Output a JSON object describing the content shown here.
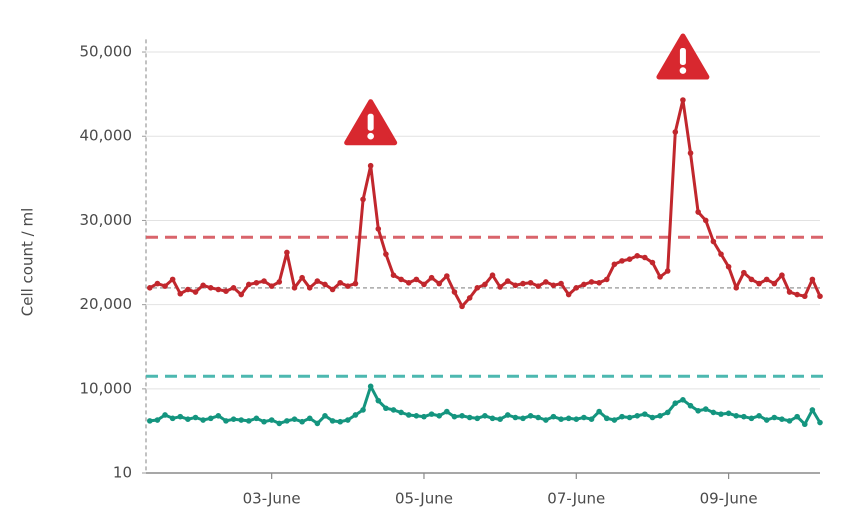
{
  "chart_data": {
    "type": "line",
    "y_label": "Cell count / ml",
    "x": [
      1.4,
      1.5,
      1.6,
      1.7,
      1.8,
      1.9,
      2.0,
      2.1,
      2.2,
      2.3,
      2.4,
      2.5,
      2.6,
      2.7,
      2.8,
      2.9,
      3.0,
      3.1,
      3.2,
      3.3,
      3.4,
      3.5,
      3.6,
      3.7,
      3.8,
      3.9,
      4.0,
      4.1,
      4.2,
      4.3,
      4.4,
      4.5,
      4.6,
      4.7,
      4.8,
      4.9,
      5.0,
      5.1,
      5.2,
      5.3,
      5.4,
      5.5,
      5.6,
      5.7,
      5.8,
      5.9,
      6.0,
      6.1,
      6.2,
      6.3,
      6.4,
      6.5,
      6.6,
      6.7,
      6.8,
      6.9,
      7.0,
      7.1,
      7.2,
      7.3,
      7.4,
      7.5,
      7.6,
      7.7,
      7.8,
      7.9,
      8.0,
      8.1,
      8.2,
      8.3,
      8.4,
      8.5,
      8.6,
      8.7,
      8.8,
      8.9,
      9.0,
      9.1,
      9.2,
      9.3,
      9.4,
      9.5,
      9.6,
      9.7,
      9.8,
      9.9,
      10.0,
      10.1,
      10.2
    ],
    "series": [
      {
        "color": "#c1272d",
        "values": [
          22000,
          22500,
          22200,
          23000,
          21300,
          21800,
          21500,
          22300,
          22000,
          21800,
          21600,
          22000,
          21200,
          22400,
          22600,
          22800,
          22200,
          22700,
          26200,
          22000,
          23200,
          22000,
          22800,
          22400,
          21800,
          22600,
          22200,
          22500,
          32500,
          36500,
          29000,
          26000,
          23500,
          23000,
          22600,
          23000,
          22400,
          23200,
          22500,
          23400,
          21500,
          19800,
          20800,
          22000,
          22400,
          23500,
          22100,
          22800,
          22300,
          22500,
          22600,
          22200,
          22700,
          22300,
          22500,
          21200,
          22000,
          22400,
          22700,
          22600,
          23000,
          24800,
          25200,
          25400,
          25800,
          25600,
          25000,
          23300,
          24000,
          40500,
          44300,
          38000,
          31000,
          30000,
          27500,
          26000,
          24500,
          22000,
          23800,
          23000,
          22500,
          23000,
          22500,
          23500,
          21500,
          21200,
          21000,
          23000,
          21000
        ]
      },
      {
        "color": "#14957f",
        "values": [
          6200,
          6300,
          6900,
          6500,
          6700,
          6400,
          6600,
          6300,
          6500,
          6800,
          6200,
          6400,
          6300,
          6200,
          6500,
          6100,
          6300,
          5900,
          6200,
          6400,
          6100,
          6500,
          5900,
          6800,
          6200,
          6100,
          6300,
          6900,
          7500,
          10300,
          8600,
          7700,
          7500,
          7200,
          6900,
          6800,
          6700,
          7000,
          6800,
          7300,
          6700,
          6800,
          6600,
          6500,
          6800,
          6500,
          6400,
          6900,
          6600,
          6500,
          6800,
          6600,
          6300,
          6700,
          6400,
          6500,
          6400,
          6600,
          6400,
          7300,
          6500,
          6300,
          6700,
          6600,
          6800,
          7000,
          6600,
          6800,
          7200,
          8300,
          8700,
          8000,
          7400,
          7600,
          7200,
          7000,
          7100,
          6800,
          6700,
          6500,
          6800,
          6300,
          6600,
          6400,
          6200,
          6700,
          5800,
          7500,
          6000
        ]
      }
    ],
    "reference_lines": [
      {
        "value": 28000,
        "color": "#d9646b"
      },
      {
        "value": 11500,
        "color": "#4db8b0"
      },
      {
        "value": 22000,
        "color": "#a8a8a8"
      }
    ],
    "xlim": [
      1.35,
      10.2
    ],
    "xticks": [
      {
        "value": 3,
        "label": "03-June"
      },
      {
        "value": 5,
        "label": "05-June"
      },
      {
        "value": 7,
        "label": "07-June"
      },
      {
        "value": 9,
        "label": "09-June"
      }
    ],
    "ylim": [
      10,
      51500
    ],
    "yticks": [
      10,
      {
        "value": 10000,
        "label": "10,000"
      },
      {
        "value": 20000,
        "label": "20,000"
      },
      {
        "value": 30000,
        "label": "30,000"
      },
      {
        "value": 40000,
        "label": "40,000"
      },
      {
        "value": 50000,
        "label": "50,000"
      }
    ],
    "grid": true
  }
}
